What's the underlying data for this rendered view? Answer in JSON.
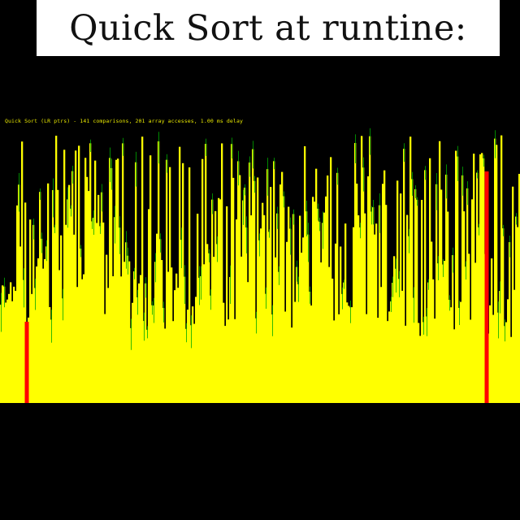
{
  "title": "Quick Sort at runtine:",
  "status": "Quick Sort (LR ptrs) - 141 comparisons, 201 array accesses, 1.00 ms delay",
  "visualization": {
    "bar_count": 320,
    "bar_color": "#ffff00",
    "highlight_color": "#ff0000",
    "secondary_color": "#00aa00",
    "background": "#000000",
    "highlighted_bars": [
      16,
      299
    ]
  }
}
